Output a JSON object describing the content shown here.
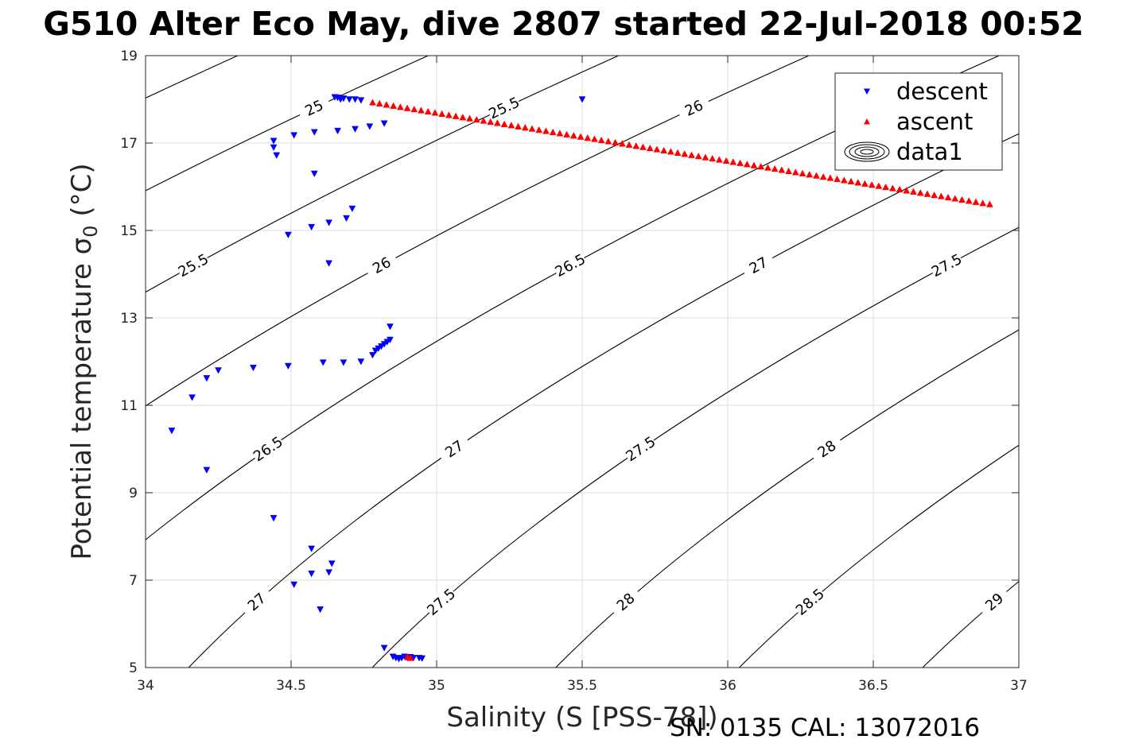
{
  "title": "G510 Alter Eco May, dive 2807 started 22-Jul-2018 00:52",
  "footer": "SN: 0135  CAL: 13072016",
  "chart_data": {
    "type": "scatter",
    "title": "G510 Alter Eco May, dive 2807 started 22-Jul-2018 00:52",
    "xlabel": "Salinity (S [PSS-78])",
    "ylabel": "Potential temperature σ0 (°C)",
    "xlim": [
      34,
      37
    ],
    "ylim": [
      5,
      19
    ],
    "xticks": [
      34,
      34.5,
      35,
      35.5,
      36,
      36.5,
      37
    ],
    "xtick_labels": [
      "34",
      "34.5",
      "35",
      "35.5",
      "36",
      "36.5",
      "37"
    ],
    "yticks": [
      5,
      7,
      9,
      11,
      13,
      15,
      17,
      19
    ],
    "ytick_labels": [
      "5",
      "7",
      "9",
      "11",
      "13",
      "15",
      "17",
      "19"
    ],
    "grid": true,
    "legend_position": "top-right",
    "legend": [
      "descent",
      "ascent",
      "data1"
    ],
    "series": [
      {
        "name": "descent",
        "marker": "triangle-down",
        "color": "#0000ff",
        "points": [
          [
            34.65,
            18.05
          ],
          [
            34.66,
            18.04
          ],
          [
            34.67,
            18.0
          ],
          [
            34.68,
            18.02
          ],
          [
            34.7,
            18.0
          ],
          [
            34.72,
            18.0
          ],
          [
            34.74,
            17.98
          ],
          [
            34.82,
            17.45
          ],
          [
            34.77,
            17.38
          ],
          [
            34.72,
            17.32
          ],
          [
            34.66,
            17.28
          ],
          [
            34.58,
            17.25
          ],
          [
            34.51,
            17.18
          ],
          [
            34.44,
            17.05
          ],
          [
            34.44,
            16.9
          ],
          [
            34.45,
            16.72
          ],
          [
            34.58,
            16.3
          ],
          [
            34.71,
            15.5
          ],
          [
            34.69,
            15.28
          ],
          [
            34.63,
            15.18
          ],
          [
            34.57,
            15.08
          ],
          [
            34.49,
            14.9
          ],
          [
            34.63,
            14.25
          ],
          [
            34.84,
            12.8
          ],
          [
            34.84,
            12.5
          ],
          [
            34.83,
            12.45
          ],
          [
            34.82,
            12.4
          ],
          [
            34.81,
            12.35
          ],
          [
            34.8,
            12.3
          ],
          [
            34.79,
            12.25
          ],
          [
            34.78,
            12.15
          ],
          [
            34.74,
            12.0
          ],
          [
            34.68,
            11.98
          ],
          [
            34.61,
            11.98
          ],
          [
            34.49,
            11.9
          ],
          [
            34.37,
            11.86
          ],
          [
            34.25,
            11.8
          ],
          [
            34.21,
            11.62
          ],
          [
            34.16,
            11.18
          ],
          [
            34.09,
            10.42
          ],
          [
            34.21,
            9.52
          ],
          [
            34.44,
            8.42
          ],
          [
            34.57,
            7.72
          ],
          [
            34.64,
            7.38
          ],
          [
            34.63,
            7.18
          ],
          [
            34.57,
            7.15
          ],
          [
            34.51,
            6.9
          ],
          [
            34.6,
            6.33
          ],
          [
            34.82,
            5.45
          ],
          [
            34.85,
            5.25
          ],
          [
            34.86,
            5.22
          ],
          [
            34.87,
            5.2
          ],
          [
            34.88,
            5.22
          ],
          [
            34.89,
            5.25
          ],
          [
            34.9,
            5.22
          ],
          [
            34.91,
            5.24
          ],
          [
            34.92,
            5.22
          ],
          [
            34.94,
            5.22
          ],
          [
            34.95,
            5.21
          ],
          [
            35.5,
            18.0
          ]
        ]
      },
      {
        "name": "ascent",
        "marker": "triangle-up",
        "color": "#ff0000",
        "linear_run": {
          "x_start": 34.78,
          "y_start": 17.93,
          "x_end": 36.9,
          "y_end": 15.6,
          "n": 90
        },
        "extra_points": [
          [
            34.9,
            5.24
          ],
          [
            34.91,
            5.22
          ]
        ]
      },
      {
        "name": "data1",
        "type": "contour",
        "quantity": "sigma0 (kg/m3 - 1000)",
        "levels": [
          24.5,
          25,
          25.5,
          26,
          26.5,
          27,
          27.5,
          28,
          28.5,
          29
        ]
      }
    ]
  }
}
